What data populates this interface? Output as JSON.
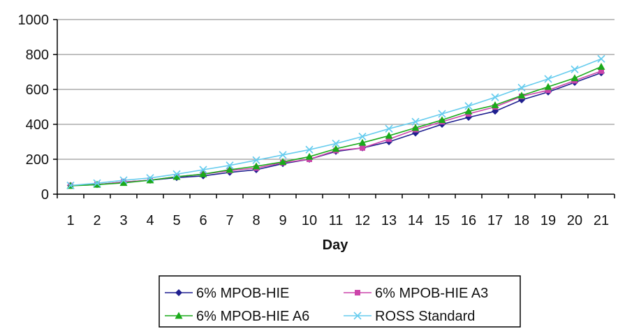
{
  "chart_data": {
    "type": "line",
    "title": "",
    "xlabel": "Day",
    "ylabel": "",
    "ylim": [
      0,
      1000
    ],
    "yticks": [
      0,
      200,
      400,
      600,
      800,
      1000
    ],
    "grid": "horizontal",
    "legend_position": "bottom",
    "x": [
      1,
      2,
      3,
      4,
      5,
      6,
      7,
      8,
      9,
      10,
      11,
      12,
      13,
      14,
      15,
      16,
      17,
      18,
      19,
      20,
      21
    ],
    "series": [
      {
        "name": "6% MPOB-HIE",
        "color": "#1f1f8f",
        "marker": "diamond",
        "values": [
          50,
          55,
          70,
          80,
          95,
          105,
          125,
          140,
          175,
          200,
          245,
          265,
          300,
          350,
          400,
          440,
          475,
          540,
          585,
          640,
          695
        ]
      },
      {
        "name": "6% MPOB-HIE A3",
        "color": "#cc44aa",
        "marker": "square",
        "values": [
          50,
          55,
          70,
          80,
          100,
          115,
          135,
          150,
          180,
          200,
          250,
          265,
          315,
          370,
          415,
          460,
          500,
          560,
          595,
          650,
          705
        ]
      },
      {
        "name": "6% MPOB-HIE A6",
        "color": "#1aaa1a",
        "marker": "triangle",
        "values": [
          48,
          55,
          65,
          80,
          100,
          115,
          140,
          160,
          185,
          215,
          260,
          295,
          335,
          380,
          425,
          475,
          510,
          565,
          615,
          665,
          730
        ]
      },
      {
        "name": "ROSS Standard",
        "color": "#66ccee",
        "marker": "x",
        "values": [
          50,
          63,
          80,
          93,
          115,
          140,
          165,
          195,
          225,
          255,
          290,
          330,
          375,
          415,
          460,
          505,
          555,
          610,
          660,
          715,
          775
        ]
      }
    ]
  }
}
